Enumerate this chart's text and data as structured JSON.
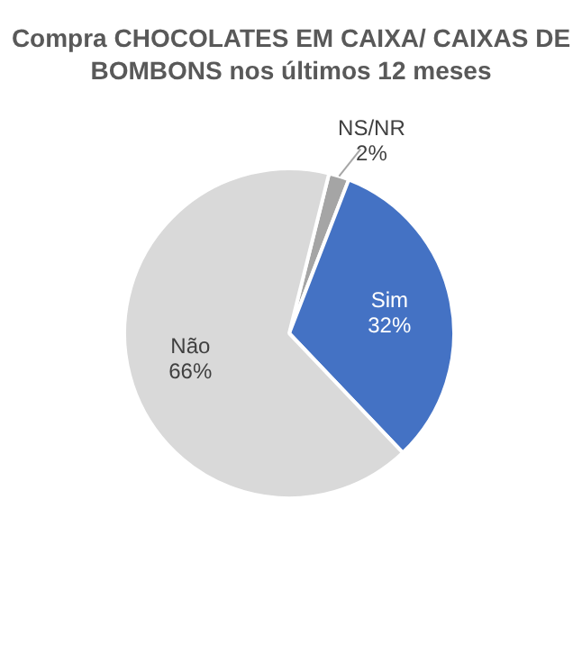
{
  "chart_data": {
    "type": "pie",
    "title": "Compra CHOCOLATES EM CAIXA/ CAIXAS DE BOMBONS nos últimos 12 meses",
    "categories": [
      "NS/NR",
      "Sim",
      "Não"
    ],
    "values": [
      2,
      32,
      66
    ],
    "value_labels": [
      "2%",
      "32%",
      "66%"
    ],
    "colors": [
      "#a5a5a5",
      "#4472c4",
      "#d9d9d9"
    ],
    "legend": false
  }
}
